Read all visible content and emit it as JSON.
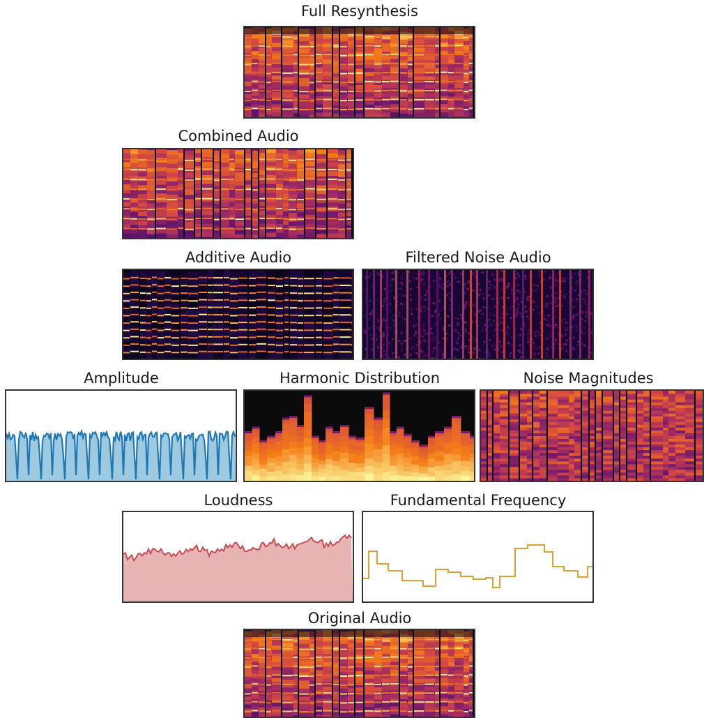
{
  "panels": {
    "full_resynthesis": {
      "title": "Full Resynthesis",
      "kind": "spectrogram"
    },
    "combined_audio": {
      "title": "Combined Audio",
      "kind": "spectrogram"
    },
    "additive_audio": {
      "title": "Additive Audio",
      "kind": "spectrogram"
    },
    "filtered_noise_audio": {
      "title": "Filtered Noise Audio",
      "kind": "spectrogram"
    },
    "amplitude": {
      "title": "Amplitude",
      "kind": "line-filled",
      "color": "#1f77b4",
      "fill": "#9ecae1"
    },
    "harmonic_distribution": {
      "title": "Harmonic Distribution",
      "kind": "spectrogram"
    },
    "noise_magnitudes": {
      "title": "Noise Magnitudes",
      "kind": "spectrogram"
    },
    "loudness": {
      "title": "Loudness",
      "kind": "line-filled",
      "color": "#c44e52",
      "fill": "#e8b4b4"
    },
    "fundamental_frequency": {
      "title": "Fundamental Frequency",
      "kind": "step-line",
      "color": "#e0a030"
    },
    "original_audio": {
      "title": "Original Audio",
      "kind": "spectrogram"
    }
  },
  "colors": {
    "spectrogram_dark": "#1a0a2e",
    "spectrogram_mid": "#b5367a",
    "spectrogram_bright": "#fcd9a0",
    "frame": "#333333"
  }
}
